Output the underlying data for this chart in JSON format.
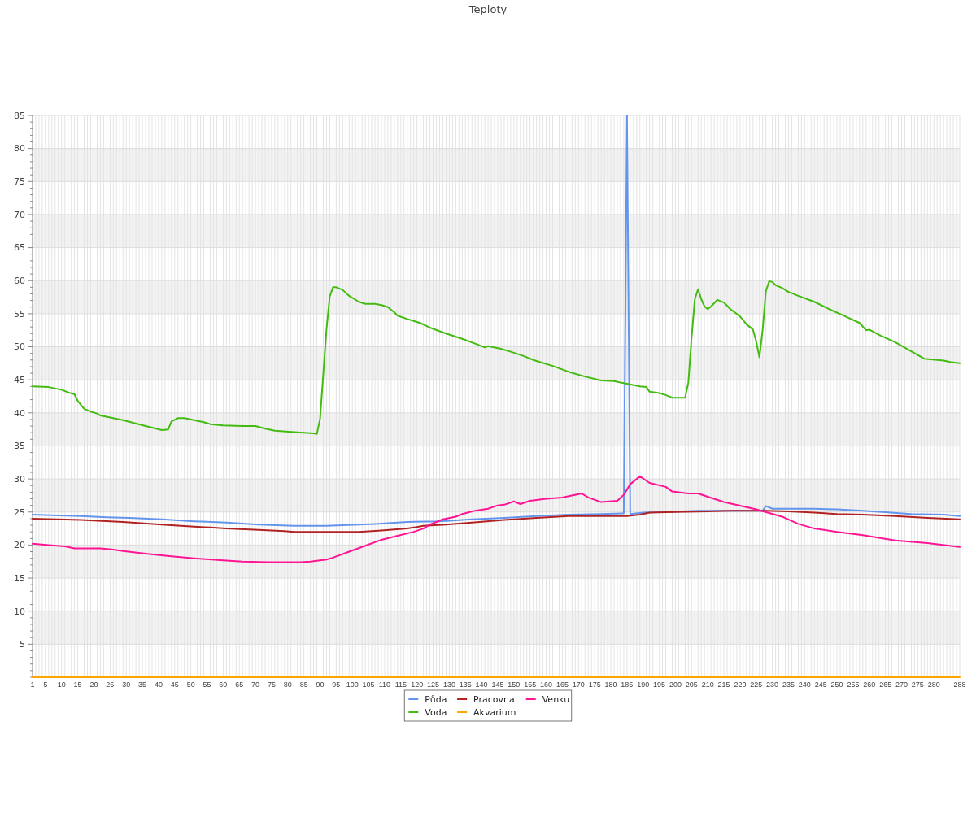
{
  "chart_data": {
    "type": "line",
    "title": "Teploty",
    "xlim": [
      1,
      288
    ],
    "xticks": [
      1,
      {
        "value": 2,
        "label": null
      },
      {
        "value": 3,
        "label": null
      },
      {
        "value": 4,
        "label": null
      },
      5,
      {
        "value": 6,
        "label": null
      },
      {
        "value": 7,
        "label": null
      },
      {
        "value": 8,
        "label": null
      },
      {
        "value": 9,
        "label": null
      },
      10,
      {
        "value": 11,
        "label": null
      },
      {
        "value": 12,
        "label": null
      },
      {
        "value": 13,
        "label": null
      },
      {
        "value": 14,
        "label": null
      },
      15,
      {
        "value": 16,
        "label": null
      },
      {
        "value": 17,
        "label": null
      },
      {
        "value": 18,
        "label": null
      },
      {
        "value": 19,
        "label": null
      },
      20,
      {
        "value": 21,
        "label": null
      },
      {
        "value": 22,
        "label": null
      },
      {
        "value": 23,
        "label": null
      },
      {
        "value": 24,
        "label": null
      },
      25,
      {
        "value": 26,
        "label": null
      },
      {
        "value": 27,
        "label": null
      },
      {
        "value": 28,
        "label": null
      },
      {
        "value": 29,
        "label": null
      },
      30,
      {
        "value": 31,
        "label": null
      },
      {
        "value": 32,
        "label": null
      },
      {
        "value": 33,
        "label": null
      },
      {
        "value": 34,
        "label": null
      },
      35,
      {
        "value": 36,
        "label": null
      },
      {
        "value": 37,
        "label": null
      },
      {
        "value": 38,
        "label": null
      },
      {
        "value": 39,
        "label": null
      },
      40,
      {
        "value": 41,
        "label": null
      },
      {
        "value": 42,
        "label": null
      },
      {
        "value": 43,
        "label": null
      },
      {
        "value": 44,
        "label": null
      },
      45,
      {
        "value": 46,
        "label": null
      },
      {
        "value": 47,
        "label": null
      },
      {
        "value": 48,
        "label": null
      },
      {
        "value": 49,
        "label": null
      },
      50,
      {
        "value": 51,
        "label": null
      },
      {
        "value": 52,
        "label": null
      },
      {
        "value": 53,
        "label": null
      },
      {
        "value": 54,
        "label": null
      },
      55,
      {
        "value": 56,
        "label": null
      },
      {
        "value": 57,
        "label": null
      },
      {
        "value": 58,
        "label": null
      },
      {
        "value": 59,
        "label": null
      },
      60,
      {
        "value": 61,
        "label": null
      },
      {
        "value": 62,
        "label": null
      },
      {
        "value": 63,
        "label": null
      },
      {
        "value": 64,
        "label": null
      },
      65,
      {
        "value": 66,
        "label": null
      },
      {
        "value": 67,
        "label": null
      },
      {
        "value": 68,
        "label": null
      },
      {
        "value": 69,
        "label": null
      },
      70,
      {
        "value": 71,
        "label": null
      },
      {
        "value": 72,
        "label": null
      },
      {
        "value": 73,
        "label": null
      },
      {
        "value": 74,
        "label": null
      },
      75,
      {
        "value": 76,
        "label": null
      },
      {
        "value": 77,
        "label": null
      },
      {
        "value": 78,
        "label": null
      },
      {
        "value": 79,
        "label": null
      },
      80,
      {
        "value": 81,
        "label": null
      },
      {
        "value": 82,
        "label": null
      },
      {
        "value": 83,
        "label": null
      },
      {
        "value": 84,
        "label": null
      },
      85,
      {
        "value": 86,
        "label": null
      },
      {
        "value": 87,
        "label": null
      },
      {
        "value": 88,
        "label": null
      },
      {
        "value": 89,
        "label": null
      },
      90,
      {
        "value": 91,
        "label": null
      },
      {
        "value": 92,
        "label": null
      },
      {
        "value": 93,
        "label": null
      },
      {
        "value": 94,
        "label": null
      },
      95,
      {
        "value": 96,
        "label": null
      },
      {
        "value": 97,
        "label": null
      },
      {
        "value": 98,
        "label": null
      },
      {
        "value": 99,
        "label": null
      },
      100,
      {
        "value": 101,
        "label": null
      },
      {
        "value": 102,
        "label": null
      },
      {
        "value": 103,
        "label": null
      },
      {
        "value": 104,
        "label": null
      },
      105,
      {
        "value": 106,
        "label": null
      },
      {
        "value": 107,
        "label": null
      },
      {
        "value": 108,
        "label": null
      },
      {
        "value": 109,
        "label": null
      },
      110,
      {
        "value": 111,
        "label": null
      },
      {
        "value": 112,
        "label": null
      },
      {
        "value": 113,
        "label": null
      },
      {
        "value": 114,
        "label": null
      },
      115,
      {
        "value": 116,
        "label": null
      },
      {
        "value": 117,
        "label": null
      },
      {
        "value": 118,
        "label": null
      },
      {
        "value": 119,
        "label": null
      },
      120,
      {
        "value": 121,
        "label": null
      },
      {
        "value": 122,
        "label": null
      },
      {
        "value": 123,
        "label": null
      },
      {
        "value": 124,
        "label": null
      },
      125,
      {
        "value": 126,
        "label": null
      },
      {
        "value": 127,
        "label": null
      },
      {
        "value": 128,
        "label": null
      },
      {
        "value": 129,
        "label": null
      },
      130,
      {
        "value": 131,
        "label": null
      },
      {
        "value": 132,
        "label": null
      },
      {
        "value": 133,
        "label": null
      },
      {
        "value": 134,
        "label": null
      },
      135,
      {
        "value": 136,
        "label": null
      },
      {
        "value": 137,
        "label": null
      },
      {
        "value": 138,
        "label": null
      },
      {
        "value": 139,
        "label": null
      },
      140,
      {
        "value": 141,
        "label": null
      },
      {
        "value": 142,
        "label": null
      },
      {
        "value": 143,
        "label": null
      },
      {
        "value": 144,
        "label": null
      },
      145,
      {
        "value": 146,
        "label": null
      },
      {
        "value": 147,
        "label": null
      },
      {
        "value": 148,
        "label": null
      },
      {
        "value": 149,
        "label": null
      },
      150,
      {
        "value": 151,
        "label": null
      },
      {
        "value": 152,
        "label": null
      },
      {
        "value": 153,
        "label": null
      },
      {
        "value": 154,
        "label": null
      },
      155,
      {
        "value": 156,
        "label": null
      },
      {
        "value": 157,
        "label": null
      },
      {
        "value": 158,
        "label": null
      },
      {
        "value": 159,
        "label": null
      },
      160,
      {
        "value": 161,
        "label": null
      },
      {
        "value": 162,
        "label": null
      },
      {
        "value": 163,
        "label": null
      },
      {
        "value": 164,
        "label": null
      },
      165,
      {
        "value": 166,
        "label": null
      },
      {
        "value": 167,
        "label": null
      },
      {
        "value": 168,
        "label": null
      },
      {
        "value": 169,
        "label": null
      },
      170,
      {
        "value": 171,
        "label": null
      },
      {
        "value": 172,
        "label": null
      },
      {
        "value": 173,
        "label": null
      },
      {
        "value": 174,
        "label": null
      },
      175,
      {
        "value": 176,
        "label": null
      },
      {
        "value": 177,
        "label": null
      },
      {
        "value": 178,
        "label": null
      },
      {
        "value": 179,
        "label": null
      },
      180,
      {
        "value": 181,
        "label": null
      },
      {
        "value": 182,
        "label": null
      },
      {
        "value": 183,
        "label": null
      },
      {
        "value": 184,
        "label": null
      },
      185,
      {
        "value": 186,
        "label": null
      },
      {
        "value": 187,
        "label": null
      },
      {
        "value": 188,
        "label": null
      },
      {
        "value": 189,
        "label": null
      },
      190,
      {
        "value": 191,
        "label": null
      },
      {
        "value": 192,
        "label": null
      },
      {
        "value": 193,
        "label": null
      },
      {
        "value": 194,
        "label": null
      },
      195,
      {
        "value": 196,
        "label": null
      },
      {
        "value": 197,
        "label": null
      },
      {
        "value": 198,
        "label": null
      },
      {
        "value": 199,
        "label": null
      },
      200,
      {
        "value": 201,
        "label": null
      },
      {
        "value": 202,
        "label": null
      },
      {
        "value": 203,
        "label": null
      },
      {
        "value": 204,
        "label": null
      },
      205,
      {
        "value": 206,
        "label": null
      },
      {
        "value": 207,
        "label": null
      },
      {
        "value": 208,
        "label": null
      },
      {
        "value": 209,
        "label": null
      },
      210,
      {
        "value": 211,
        "label": null
      },
      {
        "value": 212,
        "label": null
      },
      {
        "value": 213,
        "label": null
      },
      {
        "value": 214,
        "label": null
      },
      215,
      {
        "value": 216,
        "label": null
      },
      {
        "value": 217,
        "label": null
      },
      {
        "value": 218,
        "label": null
      },
      {
        "value": 219,
        "label": null
      },
      220,
      {
        "value": 221,
        "label": null
      },
      {
        "value": 222,
        "label": null
      },
      {
        "value": 223,
        "label": null
      },
      {
        "value": 224,
        "label": null
      },
      225,
      {
        "value": 226,
        "label": null
      },
      {
        "value": 227,
        "label": null
      },
      {
        "value": 228,
        "label": null
      },
      {
        "value": 229,
        "label": null
      },
      230,
      {
        "value": 231,
        "label": null
      },
      {
        "value": 232,
        "label": null
      },
      {
        "value": 233,
        "label": null
      },
      {
        "value": 234,
        "label": null
      },
      235,
      {
        "value": 236,
        "label": null
      },
      {
        "value": 237,
        "label": null
      },
      {
        "value": 238,
        "label": null
      },
      {
        "value": 239,
        "label": null
      },
      240,
      {
        "value": 241,
        "label": null
      },
      {
        "value": 242,
        "label": null
      },
      {
        "value": 243,
        "label": null
      },
      {
        "value": 244,
        "label": null
      },
      245,
      {
        "value": 246,
        "label": null
      },
      {
        "value": 247,
        "label": null
      },
      {
        "value": 248,
        "label": null
      },
      {
        "value": 249,
        "label": null
      },
      250,
      {
        "value": 251,
        "label": null
      },
      {
        "value": 252,
        "label": null
      },
      {
        "value": 253,
        "label": null
      },
      {
        "value": 254,
        "label": null
      },
      255,
      {
        "value": 256,
        "label": null
      },
      {
        "value": 257,
        "label": null
      },
      {
        "value": 258,
        "label": null
      },
      {
        "value": 259,
        "label": null
      },
      260,
      {
        "value": 261,
        "label": null
      },
      {
        "value": 262,
        "label": null
      },
      {
        "value": 263,
        "label": null
      },
      {
        "value": 264,
        "label": null
      },
      265,
      {
        "value": 266,
        "label": null
      },
      {
        "value": 267,
        "label": null
      },
      {
        "value": 268,
        "label": null
      },
      {
        "value": 269,
        "label": null
      },
      270,
      {
        "value": 271,
        "label": null
      },
      {
        "value": 272,
        "label": null
      },
      {
        "value": 273,
        "label": null
      },
      {
        "value": 274,
        "label": null
      },
      275,
      {
        "value": 276,
        "label": null
      },
      {
        "value": 277,
        "label": null
      },
      {
        "value": 278,
        "label": null
      },
      {
        "value": 279,
        "label": null
      },
      280,
      {
        "value": 281,
        "label": null
      },
      {
        "value": 282,
        "label": null
      },
      {
        "value": 283,
        "label": null
      },
      {
        "value": 284,
        "label": null
      },
      {
        "value": 285,
        "label": null
      },
      {
        "value": 286,
        "label": null
      },
      {
        "value": 287,
        "label": null
      },
      288
    ],
    "ylim": [
      0,
      85
    ],
    "yticks": [
      {
        "value": 0,
        "label": null
      },
      {
        "value": 1,
        "label": null
      },
      {
        "value": 2,
        "label": null
      },
      {
        "value": 3,
        "label": null
      },
      {
        "value": 4,
        "label": null
      },
      5,
      {
        "value": 6,
        "label": null
      },
      {
        "value": 7,
        "label": null
      },
      {
        "value": 8,
        "label": null
      },
      {
        "value": 9,
        "label": null
      },
      10,
      {
        "value": 11,
        "label": null
      },
      {
        "value": 12,
        "label": null
      },
      {
        "value": 13,
        "label": null
      },
      {
        "value": 14,
        "label": null
      },
      15,
      {
        "value": 16,
        "label": null
      },
      {
        "value": 17,
        "label": null
      },
      {
        "value": 18,
        "label": null
      },
      {
        "value": 19,
        "label": null
      },
      20,
      {
        "value": 21,
        "label": null
      },
      {
        "value": 22,
        "label": null
      },
      {
        "value": 23,
        "label": null
      },
      {
        "value": 24,
        "label": null
      },
      25,
      {
        "value": 26,
        "label": null
      },
      {
        "value": 27,
        "label": null
      },
      {
        "value": 28,
        "label": null
      },
      {
        "value": 29,
        "label": null
      },
      30,
      {
        "value": 31,
        "label": null
      },
      {
        "value": 32,
        "label": null
      },
      {
        "value": 33,
        "label": null
      },
      {
        "value": 34,
        "label": null
      },
      35,
      {
        "value": 36,
        "label": null
      },
      {
        "value": 37,
        "label": null
      },
      {
        "value": 38,
        "label": null
      },
      {
        "value": 39,
        "label": null
      },
      40,
      {
        "value": 41,
        "label": null
      },
      {
        "value": 42,
        "label": null
      },
      {
        "value": 43,
        "label": null
      },
      {
        "value": 44,
        "label": null
      },
      45,
      {
        "value": 46,
        "label": null
      },
      {
        "value": 47,
        "label": null
      },
      {
        "value": 48,
        "label": null
      },
      {
        "value": 49,
        "label": null
      },
      50,
      {
        "value": 51,
        "label": null
      },
      {
        "value": 52,
        "label": null
      },
      {
        "value": 53,
        "label": null
      },
      {
        "value": 54,
        "label": null
      },
      55,
      {
        "value": 56,
        "label": null
      },
      {
        "value": 57,
        "label": null
      },
      {
        "value": 58,
        "label": null
      },
      {
        "value": 59,
        "label": null
      },
      60,
      {
        "value": 61,
        "label": null
      },
      {
        "value": 62,
        "label": null
      },
      {
        "value": 63,
        "label": null
      },
      {
        "value": 64,
        "label": null
      },
      65,
      {
        "value": 66,
        "label": null
      },
      {
        "value": 67,
        "label": null
      },
      {
        "value": 68,
        "label": null
      },
      {
        "value": 69,
        "label": null
      },
      70,
      {
        "value": 71,
        "label": null
      },
      {
        "value": 72,
        "label": null
      },
      {
        "value": 73,
        "label": null
      },
      {
        "value": 74,
        "label": null
      },
      75,
      {
        "value": 76,
        "label": null
      },
      {
        "value": 77,
        "label": null
      },
      {
        "value": 78,
        "label": null
      },
      {
        "value": 79,
        "label": null
      },
      80,
      {
        "value": 81,
        "label": null
      },
      {
        "value": 82,
        "label": null
      },
      {
        "value": 83,
        "label": null
      },
      {
        "value": 84,
        "label": null
      },
      85
    ],
    "grid": true,
    "bands": [
      {
        "axis": "y",
        "from": 5,
        "to": 10,
        "color": "#f2f2f2"
      },
      {
        "axis": "y",
        "from": 15,
        "to": 20,
        "color": "#f2f2f2"
      },
      {
        "axis": "y",
        "from": 25,
        "to": 30,
        "color": "#f2f2f2"
      },
      {
        "axis": "y",
        "from": 35,
        "to": 40,
        "color": "#f2f2f2"
      },
      {
        "axis": "y",
        "from": 45,
        "to": 50,
        "color": "#f2f2f2"
      },
      {
        "axis": "y",
        "from": 55,
        "to": 60,
        "color": "#f2f2f2"
      },
      {
        "axis": "y",
        "from": 65,
        "to": 70,
        "color": "#f2f2f2"
      },
      {
        "axis": "y",
        "from": 75,
        "to": 80,
        "color": "#f2f2f2"
      }
    ],
    "legend": "bottom",
    "series": [
      {
        "name": "Půda",
        "color": "#6495ed",
        "x": [
          1,
          7,
          16,
          24,
          31,
          41,
          51,
          61,
          71,
          82,
          92,
          97,
          107,
          117,
          127,
          137,
          147,
          157,
          167,
          177,
          184,
          185,
          186,
          190,
          197,
          207,
          217,
          227,
          228,
          230,
          243,
          250,
          258,
          264,
          273,
          283,
          288
        ],
        "values": [
          24.6,
          24.5,
          24.4,
          24.2,
          24.1,
          23.9,
          23.6,
          23.4,
          23.1,
          22.9,
          22.9,
          23.0,
          23.2,
          23.5,
          23.6,
          23.9,
          24.1,
          24.4,
          24.6,
          24.7,
          24.8,
          85,
          24.7,
          24.9,
          25.0,
          25.2,
          25.2,
          25.2,
          25.9,
          25.5,
          25.5,
          25.4,
          25.2,
          25.0,
          24.7,
          24.6,
          24.4
        ]
      },
      {
        "name": "Pracovna",
        "color": "#b22222",
        "x": [
          1,
          16,
          29,
          41,
          51,
          61,
          71,
          79,
          82,
          92,
          102,
          109,
          117,
          122,
          129,
          137,
          147,
          157,
          167,
          177,
          185,
          189,
          192,
          200,
          210,
          217,
          228,
          235,
          243,
          250,
          258,
          268,
          278,
          288
        ],
        "values": [
          24.0,
          23.8,
          23.5,
          23.1,
          22.8,
          22.5,
          22.3,
          22.1,
          22.0,
          22.0,
          22.0,
          22.2,
          22.5,
          22.9,
          23.1,
          23.4,
          23.8,
          24.1,
          24.4,
          24.4,
          24.4,
          24.6,
          24.9,
          25.0,
          25.1,
          25.2,
          25.2,
          25.1,
          24.9,
          24.7,
          24.6,
          24.4,
          24.1,
          23.9
        ]
      },
      {
        "name": "Venku",
        "color": "#ff1493",
        "x": [
          1,
          6,
          11,
          14,
          22,
          26,
          29,
          36,
          44,
          51,
          59,
          66,
          74,
          84,
          87,
          92,
          94,
          99,
          104,
          109,
          114,
          119,
          122,
          124,
          128,
          132,
          134,
          138,
          142,
          145,
          147,
          150,
          152,
          155,
          160,
          165,
          167,
          171,
          173,
          177,
          182,
          184,
          186,
          189,
          192,
          197,
          199,
          204,
          207,
          210,
          215,
          225,
          233,
          238,
          243,
          250,
          258,
          268,
          278,
          288
        ],
        "values": [
          20.2,
          20.0,
          19.8,
          19.5,
          19.5,
          19.3,
          19.1,
          18.7,
          18.3,
          18.0,
          17.7,
          17.5,
          17.4,
          17.4,
          17.5,
          17.8,
          18.1,
          19.0,
          19.9,
          20.8,
          21.4,
          22.0,
          22.5,
          23.1,
          23.9,
          24.3,
          24.7,
          25.2,
          25.5,
          26.0,
          26.1,
          26.6,
          26.2,
          26.7,
          27.0,
          27.2,
          27.4,
          27.8,
          27.2,
          26.5,
          26.7,
          27.6,
          29.2,
          30.4,
          29.4,
          28.8,
          28.1,
          27.8,
          27.8,
          27.3,
          26.5,
          25.4,
          24.3,
          23.2,
          22.5,
          22.0,
          21.5,
          20.7,
          20.3,
          19.7
        ]
      },
      {
        "name": "Voda",
        "color": "#44bb11",
        "x": [
          1,
          6,
          10,
          12,
          14,
          15,
          16,
          17,
          19,
          21,
          22,
          29,
          36,
          41,
          43,
          44,
          46,
          48,
          54,
          56,
          60,
          66,
          70,
          73,
          76,
          82,
          85,
          88,
          89,
          90,
          91,
          92,
          93,
          94,
          95,
          97,
          99,
          102,
          104,
          107,
          109,
          111,
          113,
          114,
          117,
          121,
          124,
          129,
          134,
          139,
          141,
          142,
          146,
          150,
          153,
          156,
          158,
          162,
          167,
          172,
          177,
          181,
          185,
          189,
          191,
          192,
          195,
          197,
          199,
          203,
          204,
          205,
          206,
          207,
          208,
          209,
          210,
          211,
          213,
          215,
          217,
          220,
          222,
          224,
          225,
          226,
          227,
          228,
          229,
          230,
          231,
          233,
          235,
          238,
          243,
          248,
          253,
          257,
          259,
          260,
          263,
          268,
          273,
          277,
          283,
          285,
          288
        ],
        "values": [
          44.0,
          43.9,
          43.5,
          43.1,
          42.8,
          41.8,
          41.2,
          40.6,
          40.2,
          39.9,
          39.6,
          38.9,
          38.0,
          37.4,
          37.5,
          38.7,
          39.2,
          39.2,
          38.6,
          38.3,
          38.1,
          38.0,
          38.0,
          37.6,
          37.3,
          37.1,
          37.0,
          36.9,
          36.8,
          39.1,
          45.9,
          52.7,
          57.6,
          59.0,
          59.0,
          58.6,
          57.7,
          56.8,
          56.5,
          56.5,
          56.3,
          56.0,
          55.2,
          54.7,
          54.2,
          53.6,
          52.9,
          52.0,
          51.2,
          50.3,
          49.9,
          50.1,
          49.7,
          49.1,
          48.6,
          48.0,
          47.7,
          47.1,
          46.2,
          45.5,
          44.9,
          44.8,
          44.4,
          44.0,
          43.9,
          43.2,
          43.0,
          42.7,
          42.3,
          42.3,
          44.6,
          51.4,
          57.2,
          58.7,
          57.2,
          56.1,
          55.7,
          56.1,
          57.1,
          56.7,
          55.7,
          54.6,
          53.4,
          52.6,
          50.8,
          48.4,
          52.6,
          58.4,
          59.9,
          59.8,
          59.3,
          58.9,
          58.3,
          57.7,
          56.8,
          55.6,
          54.5,
          53.6,
          52.5,
          52.6,
          51.8,
          50.7,
          49.3,
          48.2,
          47.9,
          47.7,
          47.5
        ]
      },
      {
        "name": "Akvarium",
        "color": "#ffa500",
        "x": [
          1,
          288
        ],
        "values": [
          0,
          0
        ]
      }
    ]
  }
}
